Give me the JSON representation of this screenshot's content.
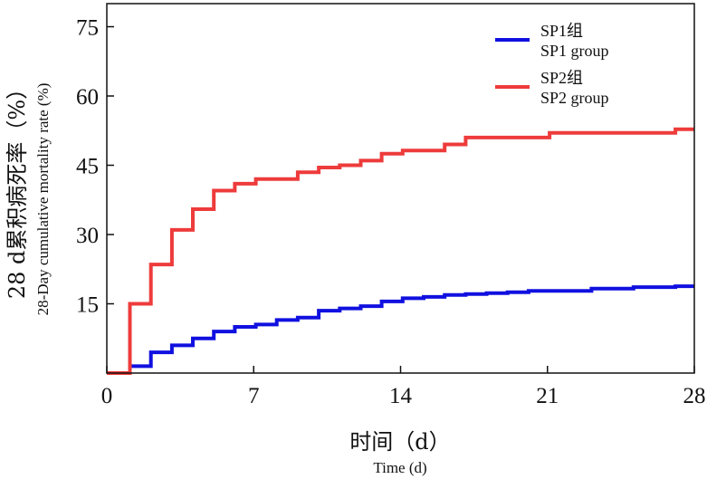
{
  "chart_data": {
    "type": "line",
    "step": true,
    "xlim": [
      0,
      28
    ],
    "ylim": [
      0,
      80
    ],
    "x_ticks": [
      0,
      7,
      14,
      21,
      28
    ],
    "y_ticks": [
      15,
      30,
      45,
      60,
      75
    ],
    "x_tick_labels": [
      "0",
      "7",
      "14",
      "21",
      "28"
    ],
    "y_tick_labels": [
      "15",
      "30",
      "45",
      "60",
      "75"
    ],
    "xlabel_cn": "时间（d）",
    "xlabel_en": "Time (d)",
    "ylabel_cn": "28 d累积病死率（%）",
    "ylabel_en": "28-Day cumulative mortality rate (%)",
    "grid": false,
    "legend_position": "top-right",
    "series": [
      {
        "name": "SP1组",
        "name_en": "SP1 group",
        "color": "#1010e0",
        "points": [
          [
            0,
            0
          ],
          [
            1.1,
            0
          ],
          [
            1.1,
            1.5
          ],
          [
            2.1,
            1.5
          ],
          [
            2.1,
            4.5
          ],
          [
            3.1,
            4.5
          ],
          [
            3.1,
            6
          ],
          [
            4.1,
            6
          ],
          [
            4.1,
            7.5
          ],
          [
            5.1,
            7.5
          ],
          [
            5.1,
            9
          ],
          [
            6.1,
            9
          ],
          [
            6.1,
            10
          ],
          [
            7.1,
            10
          ],
          [
            7.1,
            10.5
          ],
          [
            8.1,
            10.5
          ],
          [
            8.1,
            11.5
          ],
          [
            9.1,
            11.5
          ],
          [
            9.1,
            12
          ],
          [
            10.1,
            12
          ],
          [
            10.1,
            13.5
          ],
          [
            11.1,
            13.5
          ],
          [
            11.1,
            14
          ],
          [
            12.1,
            14
          ],
          [
            12.1,
            14.5
          ],
          [
            13.1,
            14.5
          ],
          [
            13.1,
            15.5
          ],
          [
            14.1,
            15.5
          ],
          [
            14.1,
            16.2
          ],
          [
            15.1,
            16.2
          ],
          [
            15.1,
            16.5
          ],
          [
            16.1,
            16.5
          ],
          [
            16.1,
            16.9
          ],
          [
            17.1,
            16.9
          ],
          [
            17.1,
            17.1
          ],
          [
            18.1,
            17.1
          ],
          [
            18.1,
            17.3
          ],
          [
            19.1,
            17.3
          ],
          [
            19.1,
            17.5
          ],
          [
            20.1,
            17.5
          ],
          [
            20.1,
            17.8
          ],
          [
            23.1,
            17.8
          ],
          [
            23.1,
            18.3
          ],
          [
            25.1,
            18.3
          ],
          [
            25.1,
            18.6
          ],
          [
            27.1,
            18.6
          ],
          [
            27.1,
            18.8
          ],
          [
            28,
            18.8
          ]
        ]
      },
      {
        "name": "SP2组",
        "name_en": "SP2 group",
        "color": "#ee3b3b",
        "points": [
          [
            0,
            0
          ],
          [
            1.1,
            0
          ],
          [
            1.1,
            15
          ],
          [
            2.1,
            15
          ],
          [
            2.1,
            23.5
          ],
          [
            3.1,
            23.5
          ],
          [
            3.1,
            31
          ],
          [
            4.1,
            31
          ],
          [
            4.1,
            35.5
          ],
          [
            5.1,
            35.5
          ],
          [
            5.1,
            39.5
          ],
          [
            6.1,
            39.5
          ],
          [
            6.1,
            41
          ],
          [
            7.1,
            41
          ],
          [
            7.1,
            42
          ],
          [
            9.1,
            42
          ],
          [
            9.1,
            43.5
          ],
          [
            10.1,
            43.5
          ],
          [
            10.1,
            44.5
          ],
          [
            11.1,
            44.5
          ],
          [
            11.1,
            45
          ],
          [
            12.1,
            45
          ],
          [
            12.1,
            46
          ],
          [
            13.1,
            46
          ],
          [
            13.1,
            47.5
          ],
          [
            14.1,
            47.5
          ],
          [
            14.1,
            48.2
          ],
          [
            16.1,
            48.2
          ],
          [
            16.1,
            49.5
          ],
          [
            17.1,
            49.5
          ],
          [
            17.1,
            51
          ],
          [
            21.1,
            51
          ],
          [
            21.1,
            52
          ],
          [
            27.1,
            52
          ],
          [
            27.1,
            52.8
          ],
          [
            28,
            52.8
          ]
        ]
      }
    ]
  }
}
